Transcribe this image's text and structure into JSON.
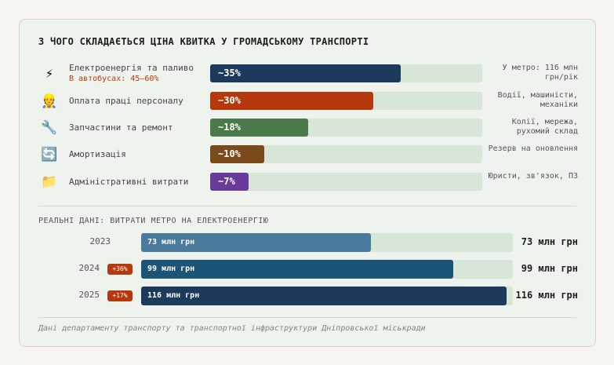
{
  "title": "З ЧОГО СКЛАДАЄТЬСЯ ЦІНА КВИТКА У ГРОМАДСЬКОМУ ТРАНСПОРТІ",
  "scale_max_percent": 50,
  "costs": [
    {
      "icon": "lightning-icon",
      "glyph": "⚡",
      "label": "Електроенергія та паливо",
      "sub": "В автобусах: 45–60%",
      "value": 35,
      "value_label": "~35%",
      "color": "#1b3a5c",
      "note": "У метро: 116 млн грн/рік"
    },
    {
      "icon": "worker-icon",
      "glyph": "👷",
      "label": "Оплата праці персоналу",
      "value": 30,
      "value_label": "~30%",
      "color": "#b5390c",
      "note": "Водії, машиністи, механіки"
    },
    {
      "icon": "wrench-icon",
      "glyph": "🔧",
      "label": "Запчастини та ремонт",
      "value": 18,
      "value_label": "~18%",
      "color": "#4a7a4a",
      "note": "Колії, мережа, рухомий склад"
    },
    {
      "icon": "cycle-icon",
      "glyph": "🔄",
      "label": "Амортизація",
      "value": 10,
      "value_label": "~10%",
      "color": "#7a4a1c",
      "note": "Резерв на оновлення"
    },
    {
      "icon": "folder-icon",
      "glyph": "📁",
      "label": "Адміністративні витрати",
      "value": 7,
      "value_label": "~7%",
      "color": "#6a3a9a",
      "note": "Юристи, зв'язок, ПЗ"
    }
  ],
  "metro": {
    "heading": "РЕАЛЬНІ ДАНІ: ВИТРАТИ МЕТРО НА ЕЛЕКТРОЕНЕРГІЮ",
    "scale_max": 118,
    "rows": [
      {
        "year": "2023",
        "badge": "",
        "value": 73,
        "bar_label": "73 млн грн",
        "value_label": "73 млн грн",
        "color": "#4a7a9c"
      },
      {
        "year": "2024",
        "badge": "+36%",
        "value": 99,
        "bar_label": "99 млн грн",
        "value_label": "99 млн грн",
        "color": "#1c5478"
      },
      {
        "year": "2025",
        "badge": "+17%",
        "value": 116,
        "bar_label": "116 млн грн",
        "value_label": "116 млн грн",
        "color": "#1b3a5c"
      }
    ]
  },
  "footer": "Дані департаменту транспорту та транспортної інфраструктури Дніпровської міськради"
}
